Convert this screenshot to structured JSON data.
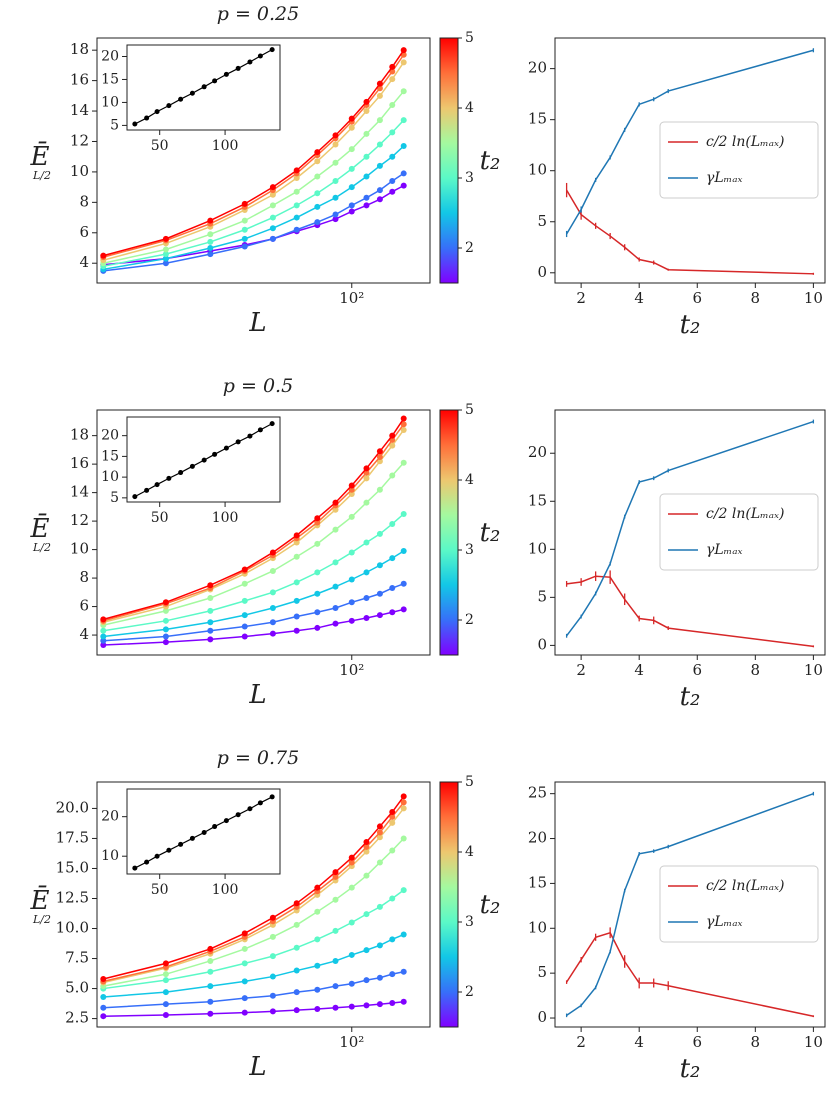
{
  "chart_data": [
    {
      "type": "line",
      "title": "p = 0.25",
      "xlabel": "L",
      "ylabel": "Ē",
      "ylabel_sub": "L/2",
      "xscale": "log",
      "x": [
        20,
        30,
        40,
        50,
        60,
        70,
        80,
        90,
        100,
        110,
        120,
        130,
        140
      ],
      "xlim": [
        19.2,
        166
      ],
      "xticks": [
        {
          "value": 100,
          "label": "10²"
        }
      ],
      "ylim": [
        2.7,
        18.8
      ],
      "yticks": [
        4,
        6,
        8,
        10,
        12,
        14,
        16,
        18
      ],
      "series": [
        {
          "name": "1.5",
          "color": "#8000ff",
          "values": [
            3.9,
            4.3,
            4.8,
            5.2,
            5.6,
            6.1,
            6.5,
            6.9,
            7.4,
            7.8,
            8.2,
            8.7,
            9.1
          ]
        },
        {
          "name": "2",
          "color": "#376ff9",
          "values": [
            3.5,
            4.0,
            4.6,
            5.1,
            5.6,
            6.2,
            6.7,
            7.2,
            7.8,
            8.3,
            8.8,
            9.4,
            9.9
          ]
        },
        {
          "name": "2.5",
          "color": "#12c7e6",
          "values": [
            3.6,
            4.3,
            5.0,
            5.6,
            6.3,
            7.0,
            7.7,
            8.3,
            9.0,
            9.7,
            10.4,
            11.0,
            11.7
          ]
        },
        {
          "name": "3",
          "color": "#5bf9c7",
          "values": [
            3.8,
            4.6,
            5.4,
            6.2,
            7.0,
            7.8,
            8.6,
            9.4,
            10.2,
            11.0,
            11.8,
            12.6,
            13.4
          ]
        },
        {
          "name": "3.5",
          "color": "#a4f99f",
          "values": [
            4.0,
            4.9,
            5.9,
            6.8,
            7.8,
            8.7,
            9.7,
            10.6,
            11.5,
            12.5,
            13.4,
            14.4,
            15.3
          ]
        },
        {
          "name": "4",
          "color": "#edc76f",
          "values": [
            4.2,
            5.3,
            6.4,
            7.5,
            8.5,
            9.6,
            10.7,
            11.8,
            12.9,
            14.0,
            15.0,
            16.1,
            17.2
          ]
        },
        {
          "name": "4.5",
          "color": "#ff6f39",
          "values": [
            4.4,
            5.5,
            6.6,
            7.7,
            8.8,
            9.9,
            11.1,
            12.2,
            13.3,
            14.4,
            15.5,
            16.6,
            17.7
          ]
        },
        {
          "name": "5",
          "color": "#ff0000",
          "values": [
            4.5,
            5.6,
            6.8,
            7.9,
            9.0,
            10.1,
            11.3,
            12.4,
            13.5,
            14.6,
            15.8,
            16.9,
            18.0
          ]
        }
      ],
      "colorbar": {
        "label": "t₂",
        "lim": [
          1.5,
          5
        ],
        "ticks": [
          2,
          3,
          4,
          5
        ]
      },
      "inset": {
        "x": [
          31,
          40,
          48,
          57,
          66,
          75,
          84,
          92,
          101,
          110,
          119,
          127,
          136
        ],
        "color": "#000000",
        "values": [
          5.3,
          6.6,
          8.0,
          9.3,
          10.7,
          12.0,
          13.4,
          14.7,
          16.1,
          17.4,
          18.8,
          20.1,
          21.5
        ],
        "xlim": [
          25,
          142
        ],
        "xticks": [
          50,
          100
        ],
        "ylim": [
          4,
          22.5
        ],
        "yticks": [
          5,
          10,
          15,
          20
        ]
      }
    },
    {
      "type": "line",
      "xlabel": "t₂",
      "x": [
        1.5,
        2,
        2.5,
        3,
        3.5,
        4,
        4.5,
        5,
        10
      ],
      "xlim": [
        1.1,
        10.4
      ],
      "xticks": [
        2,
        4,
        6,
        8,
        10
      ],
      "ylim": [
        -1,
        23
      ],
      "yticks": [
        0,
        5,
        10,
        15,
        20
      ],
      "series": [
        {
          "name": "c/2 ln(Lₘₐₓ)",
          "color": "#d62728",
          "values": [
            8.1,
            5.7,
            4.6,
            3.6,
            2.5,
            1.3,
            1.0,
            0.3,
            -0.1
          ],
          "errors": [
            0.7,
            0.5,
            0.3,
            0.3,
            0.3,
            0.2,
            0.2,
            0.1,
            0.1
          ]
        },
        {
          "name": "γLₘₐₓ",
          "color": "#1f77b4",
          "values": [
            3.8,
            6.2,
            9.1,
            11.3,
            14.0,
            16.5,
            17.0,
            17.8,
            21.8
          ],
          "errors": [
            0.3,
            0.3,
            0.2,
            0.2,
            0.2,
            0.2,
            0.2,
            0.2,
            0.2
          ]
        }
      ]
    },
    {
      "type": "line",
      "title": "p = 0.5",
      "xlabel": "L",
      "ylabel": "Ē",
      "ylabel_sub": "L/2",
      "xscale": "log",
      "x": [
        20,
        30,
        40,
        50,
        60,
        70,
        80,
        90,
        100,
        110,
        120,
        130,
        140
      ],
      "xlim": [
        19.2,
        166
      ],
      "xticks": [
        {
          "value": 100,
          "label": "10²"
        }
      ],
      "ylim": [
        2.6,
        19.8
      ],
      "yticks": [
        4,
        6,
        8,
        10,
        12,
        14,
        16,
        18
      ],
      "series": [
        {
          "name": "1.5",
          "color": "#8000ff",
          "values": [
            3.3,
            3.5,
            3.7,
            3.9,
            4.1,
            4.3,
            4.5,
            4.8,
            5.0,
            5.2,
            5.4,
            5.6,
            5.8
          ]
        },
        {
          "name": "2",
          "color": "#376ff9",
          "values": [
            3.6,
            3.9,
            4.3,
            4.6,
            4.9,
            5.3,
            5.6,
            5.9,
            6.3,
            6.6,
            6.9,
            7.3,
            7.6
          ]
        },
        {
          "name": "2.5",
          "color": "#12c7e6",
          "values": [
            3.9,
            4.4,
            4.9,
            5.4,
            5.9,
            6.4,
            6.9,
            7.4,
            7.9,
            8.4,
            8.9,
            9.4,
            9.9
          ]
        },
        {
          "name": "3",
          "color": "#5bf9c7",
          "values": [
            4.3,
            5.0,
            5.7,
            6.4,
            7.0,
            7.7,
            8.4,
            9.1,
            9.8,
            10.5,
            11.1,
            11.8,
            12.5
          ]
        },
        {
          "name": "3.5",
          "color": "#a4f99f",
          "values": [
            4.7,
            5.7,
            6.6,
            7.6,
            8.5,
            9.5,
            10.4,
            11.4,
            12.3,
            13.3,
            14.2,
            15.2,
            16.1
          ]
        },
        {
          "name": "4",
          "color": "#edc76f",
          "values": [
            4.9,
            6.0,
            7.2,
            8.3,
            9.4,
            10.5,
            11.7,
            12.8,
            13.9,
            15.0,
            16.2,
            17.3,
            18.4
          ]
        },
        {
          "name": "4.5",
          "color": "#ff6f39",
          "values": [
            5.0,
            6.2,
            7.3,
            8.5,
            9.6,
            10.8,
            11.9,
            13.1,
            14.2,
            15.4,
            16.5,
            17.7,
            18.8
          ]
        },
        {
          "name": "5",
          "color": "#ff0000",
          "values": [
            5.1,
            6.3,
            7.5,
            8.6,
            9.8,
            11.0,
            12.2,
            13.3,
            14.5,
            15.7,
            16.9,
            18.0,
            19.2
          ]
        }
      ],
      "colorbar": {
        "label": "t₂",
        "lim": [
          1.5,
          5
        ],
        "ticks": [
          2,
          3,
          4,
          5
        ]
      },
      "inset": {
        "x": [
          31,
          40,
          48,
          57,
          66,
          75,
          84,
          92,
          101,
          110,
          119,
          127,
          136
        ],
        "color": "#000000",
        "values": [
          5.3,
          6.8,
          8.2,
          9.7,
          11.1,
          12.6,
          14.1,
          15.5,
          17.0,
          18.5,
          19.9,
          21.4,
          22.9
        ],
        "xlim": [
          25,
          142
        ],
        "xticks": [
          50,
          100
        ],
        "ylim": [
          4,
          24.5
        ],
        "yticks": [
          5,
          10,
          15,
          20
        ]
      }
    },
    {
      "type": "line",
      "xlabel": "t₂",
      "x": [
        1.5,
        2,
        2.5,
        3,
        3.5,
        4,
        4.5,
        5,
        10
      ],
      "xlim": [
        1.1,
        10.4
      ],
      "xticks": [
        2,
        4,
        6,
        8,
        10
      ],
      "ylim": [
        -1,
        24.5
      ],
      "yticks": [
        0,
        5,
        10,
        15,
        20
      ],
      "series": [
        {
          "name": "c/2 ln(Lₘₐₓ)",
          "color": "#d62728",
          "values": [
            6.4,
            6.6,
            7.2,
            7.1,
            4.8,
            2.8,
            2.6,
            1.8,
            -0.1
          ],
          "errors": [
            0.3,
            0.4,
            0.5,
            0.7,
            0.6,
            0.3,
            0.4,
            0.2,
            0.1
          ]
        },
        {
          "name": "γLₘₐₓ",
          "color": "#1f77b4",
          "values": [
            1.0,
            3.0,
            5.4,
            8.5,
            13.4,
            17.0,
            17.4,
            18.2,
            23.3
          ],
          "errors": [
            0.2,
            0.2,
            0.2,
            0.2,
            0.2,
            0.2,
            0.2,
            0.2,
            0.2
          ]
        }
      ]
    },
    {
      "type": "line",
      "title": "p = 0.75",
      "xlabel": "L",
      "ylabel": "Ē",
      "ylabel_sub": "L/2",
      "xscale": "log",
      "x": [
        20,
        30,
        40,
        50,
        60,
        70,
        80,
        90,
        100,
        110,
        120,
        130,
        140
      ],
      "xlim": [
        19.2,
        166
      ],
      "xticks": [
        {
          "value": 100,
          "label": "10²"
        }
      ],
      "ylim": [
        1.8,
        22.2
      ],
      "yticks": [
        2.5,
        {
          "value": 5,
          "label": "5.0"
        },
        7.5,
        {
          "value": 10,
          "label": "10.0"
        },
        12.5,
        {
          "value": 15,
          "label": "15.0"
        },
        17.5,
        {
          "value": 20,
          "label": "20.0"
        }
      ],
      "series": [
        {
          "name": "1.5",
          "color": "#8000ff",
          "values": [
            2.7,
            2.8,
            2.9,
            3.0,
            3.1,
            3.2,
            3.3,
            3.4,
            3.5,
            3.6,
            3.7,
            3.8,
            3.9
          ]
        },
        {
          "name": "2",
          "color": "#376ff9",
          "values": [
            3.4,
            3.7,
            3.9,
            4.2,
            4.4,
            4.7,
            4.9,
            5.2,
            5.4,
            5.7,
            5.9,
            6.2,
            6.4
          ]
        },
        {
          "name": "2.5",
          "color": "#12c7e6",
          "values": [
            4.3,
            4.7,
            5.2,
            5.6,
            6.0,
            6.5,
            6.9,
            7.3,
            7.8,
            8.2,
            8.6,
            9.1,
            9.5
          ]
        },
        {
          "name": "3",
          "color": "#5bf9c7",
          "values": [
            5.0,
            5.7,
            6.4,
            7.1,
            7.7,
            8.4,
            9.1,
            9.8,
            10.5,
            11.2,
            11.8,
            12.5,
            13.2
          ]
        },
        {
          "name": "3.5",
          "color": "#a4f99f",
          "values": [
            5.2,
            6.2,
            7.3,
            8.3,
            9.3,
            10.3,
            11.4,
            12.4,
            13.4,
            14.4,
            15.5,
            16.5,
            17.5
          ]
        },
        {
          "name": "4",
          "color": "#edc76f",
          "values": [
            5.5,
            6.7,
            7.9,
            9.1,
            10.3,
            11.5,
            12.8,
            14.0,
            15.2,
            16.4,
            17.6,
            18.8,
            20.0
          ]
        },
        {
          "name": "4.5",
          "color": "#ff6f39",
          "values": [
            5.6,
            6.8,
            8.1,
            9.3,
            10.6,
            11.8,
            13.1,
            14.3,
            15.5,
            16.8,
            18.0,
            19.3,
            20.5
          ]
        },
        {
          "name": "5",
          "color": "#ff0000",
          "values": [
            5.8,
            7.1,
            8.3,
            9.6,
            10.9,
            12.1,
            13.4,
            14.7,
            15.9,
            17.2,
            18.5,
            19.7,
            21.0
          ]
        }
      ],
      "colorbar": {
        "label": "t₂",
        "lim": [
          1.5,
          5
        ],
        "ticks": [
          2,
          3,
          4,
          5
        ]
      },
      "inset": {
        "x": [
          31,
          40,
          48,
          57,
          66,
          75,
          84,
          92,
          101,
          110,
          119,
          127,
          136
        ],
        "color": "#000000",
        "values": [
          7.0,
          8.5,
          10.0,
          11.5,
          13.0,
          14.5,
          16.0,
          17.5,
          19.0,
          20.5,
          22.0,
          23.5,
          25.0
        ],
        "xlim": [
          25,
          142
        ],
        "xticks": [
          50,
          100
        ],
        "ylim": [
          5.5,
          27
        ],
        "yticks": [
          10,
          20
        ]
      }
    },
    {
      "type": "line",
      "xlabel": "t₂",
      "x": [
        1.5,
        2,
        2.5,
        3,
        3.5,
        4,
        4.5,
        5,
        10
      ],
      "xlim": [
        1.1,
        10.4
      ],
      "xticks": [
        2,
        4,
        6,
        8,
        10
      ],
      "ylim": [
        -1,
        26.3
      ],
      "yticks": [
        0,
        5,
        10,
        15,
        20,
        25
      ],
      "series": [
        {
          "name": "c/2 ln(Lₘₐₓ)",
          "color": "#d62728",
          "values": [
            4.0,
            6.5,
            9.0,
            9.5,
            6.3,
            3.9,
            3.9,
            3.6,
            0.2
          ],
          "errors": [
            0.2,
            0.3,
            0.4,
            0.6,
            0.7,
            0.6,
            0.5,
            0.5,
            0.1
          ]
        },
        {
          "name": "γLₘₐₓ",
          "color": "#1f77b4",
          "values": [
            0.3,
            1.4,
            3.4,
            7.4,
            14.2,
            18.3,
            18.6,
            19.1,
            25.0
          ],
          "errors": [
            0.2,
            0.2,
            0.2,
            0.2,
            0.2,
            0.2,
            0.2,
            0.2,
            0.2
          ]
        }
      ]
    }
  ]
}
